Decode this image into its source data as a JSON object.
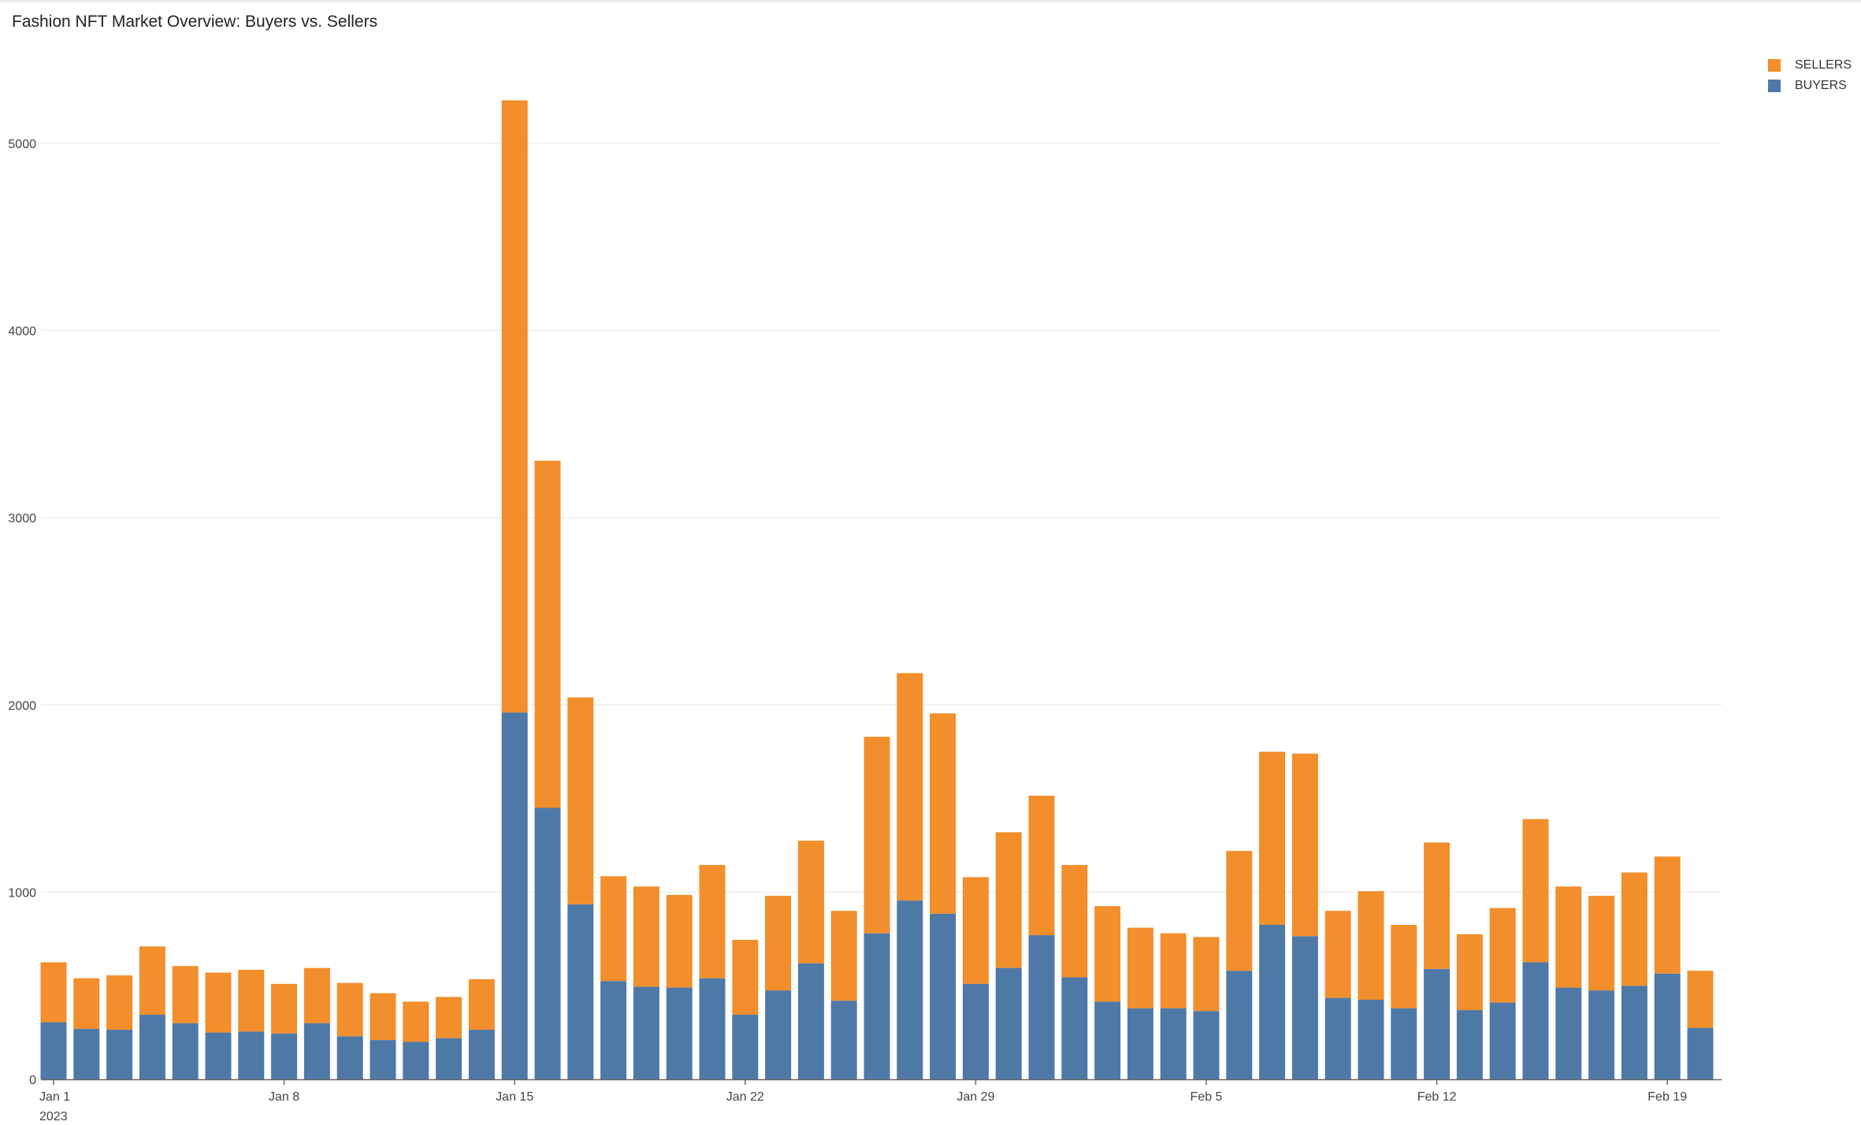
{
  "chart_data": {
    "type": "bar",
    "stacked": true,
    "title": "Fashion NFT Market Overview: Buyers vs. Sellers",
    "x_tick_labels": [
      "Jan 1",
      "Jan 8",
      "Jan 15",
      "Jan 22",
      "Jan 29",
      "Feb 5",
      "Feb 12",
      "Feb 19"
    ],
    "x_year_label": "2023",
    "x": [
      "2023-01-01",
      "2023-01-02",
      "2023-01-03",
      "2023-01-04",
      "2023-01-05",
      "2023-01-06",
      "2023-01-07",
      "2023-01-08",
      "2023-01-09",
      "2023-01-10",
      "2023-01-11",
      "2023-01-12",
      "2023-01-13",
      "2023-01-14",
      "2023-01-15",
      "2023-01-16",
      "2023-01-17",
      "2023-01-18",
      "2023-01-19",
      "2023-01-20",
      "2023-01-21",
      "2023-01-22",
      "2023-01-23",
      "2023-01-24",
      "2023-01-25",
      "2023-01-26",
      "2023-01-27",
      "2023-01-28",
      "2023-01-29",
      "2023-01-30",
      "2023-01-31",
      "2023-02-01",
      "2023-02-02",
      "2023-02-03",
      "2023-02-04",
      "2023-02-05",
      "2023-02-06",
      "2023-02-07",
      "2023-02-08",
      "2023-02-09",
      "2023-02-10",
      "2023-02-11",
      "2023-02-12",
      "2023-02-13",
      "2023-02-14",
      "2023-02-15",
      "2023-02-16",
      "2023-02-17",
      "2023-02-18",
      "2023-02-19",
      "2023-02-20"
    ],
    "series": [
      {
        "name": "BUYERS",
        "color": "#4e79a7",
        "values": [
          305,
          270,
          265,
          345,
          300,
          250,
          255,
          245,
          300,
          230,
          210,
          200,
          220,
          265,
          1960,
          1450,
          935,
          525,
          495,
          490,
          540,
          345,
          475,
          620,
          420,
          780,
          955,
          885,
          510,
          595,
          770,
          545,
          415,
          380,
          380,
          365,
          580,
          825,
          765,
          435,
          425,
          380,
          590,
          370,
          410,
          625,
          490,
          475,
          500,
          565,
          275
        ]
      },
      {
        "name": "SELLERS",
        "color": "#f28e2b",
        "values": [
          320,
          270,
          290,
          365,
          305,
          320,
          330,
          265,
          295,
          285,
          250,
          215,
          220,
          270,
          3270,
          1855,
          1105,
          560,
          535,
          495,
          605,
          400,
          505,
          655,
          480,
          1050,
          1215,
          1070,
          570,
          725,
          745,
          600,
          510,
          430,
          400,
          395,
          640,
          925,
          975,
          465,
          580,
          445,
          675,
          405,
          505,
          765,
          540,
          505,
          605,
          625,
          305
        ]
      }
    ],
    "ylim": [
      0,
      5300
    ],
    "y_ticks": [
      0,
      1000,
      2000,
      3000,
      4000,
      5000
    ],
    "grid": true,
    "legend_position": "top-right",
    "legend": [
      {
        "label": "SELLERS",
        "color": "#f28e2b"
      },
      {
        "label": "BUYERS",
        "color": "#4e79a7"
      }
    ]
  }
}
